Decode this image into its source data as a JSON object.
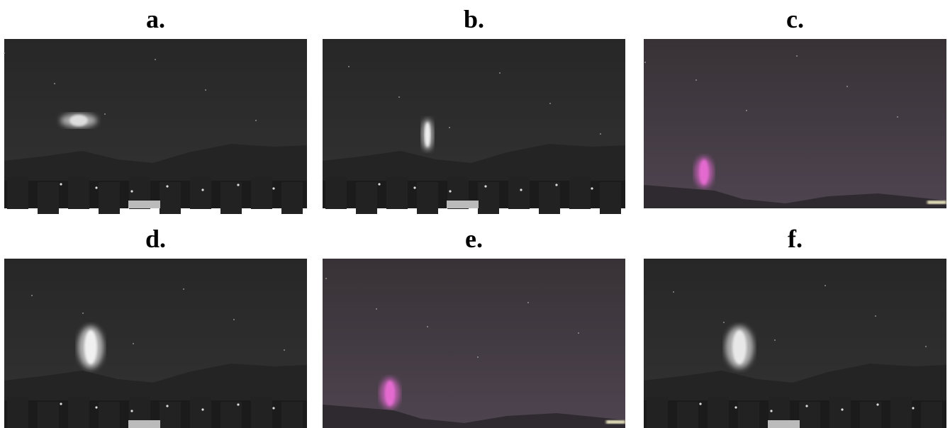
{
  "panels": [
    {
      "label": "a."
    },
    {
      "label": "b."
    },
    {
      "label": "c."
    },
    {
      "label": "d."
    },
    {
      "label": "e."
    },
    {
      "label": "f."
    }
  ]
}
